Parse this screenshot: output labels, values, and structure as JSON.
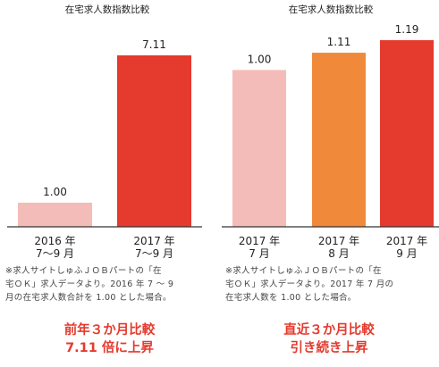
{
  "chart_data": [
    {
      "type": "bar",
      "title": "在宅求人数指数比較",
      "categories": [
        [
          "2016 年",
          "7〜9 月"
        ],
        [
          "2017 年",
          "7〜9 月"
        ]
      ],
      "values": [
        1.0,
        7.11
      ],
      "value_labels": [
        "1.00",
        "7.11"
      ],
      "bar_colors": [
        "#f4bcb8",
        "#e53a2e"
      ],
      "ylim": [
        0,
        7.11
      ],
      "grid": false,
      "legend": "none"
    },
    {
      "type": "bar",
      "title": "在宅求人数指数比較",
      "categories": [
        [
          "2017 年",
          "7 月"
        ],
        [
          "2017 年",
          "8 月"
        ],
        [
          "2017 年",
          "9 月"
        ]
      ],
      "values": [
        1.0,
        1.11,
        1.19
      ],
      "value_labels": [
        "1.00",
        "1.11",
        "1.19"
      ],
      "bar_colors": [
        "#f4bcb8",
        "#f08a3a",
        "#e53a2e"
      ],
      "ylim": [
        0,
        1.19
      ],
      "grid": false,
      "legend": "none"
    }
  ],
  "notes": [
    [
      "※求人サイトしゅふＪＯＢパートの「在",
      "宅ＯＫ」求人データより。2016 年 7 〜 9",
      "月の在宅求人数合計を 1.00 とした場合。"
    ],
    [
      "※求人サイトしゅふＪＯＢパートの「在",
      "宅ＯＫ」求人データより。2017 年 7 月の",
      "在宅求人数を 1.00 とした場合。"
    ]
  ],
  "headlines": [
    [
      "前年３か月比較",
      "7.11 倍に上昇"
    ],
    [
      "直近３か月比較",
      "引き続き上昇"
    ]
  ],
  "colors": {
    "baseline": "#333333",
    "accent": "#e53a2e"
  }
}
